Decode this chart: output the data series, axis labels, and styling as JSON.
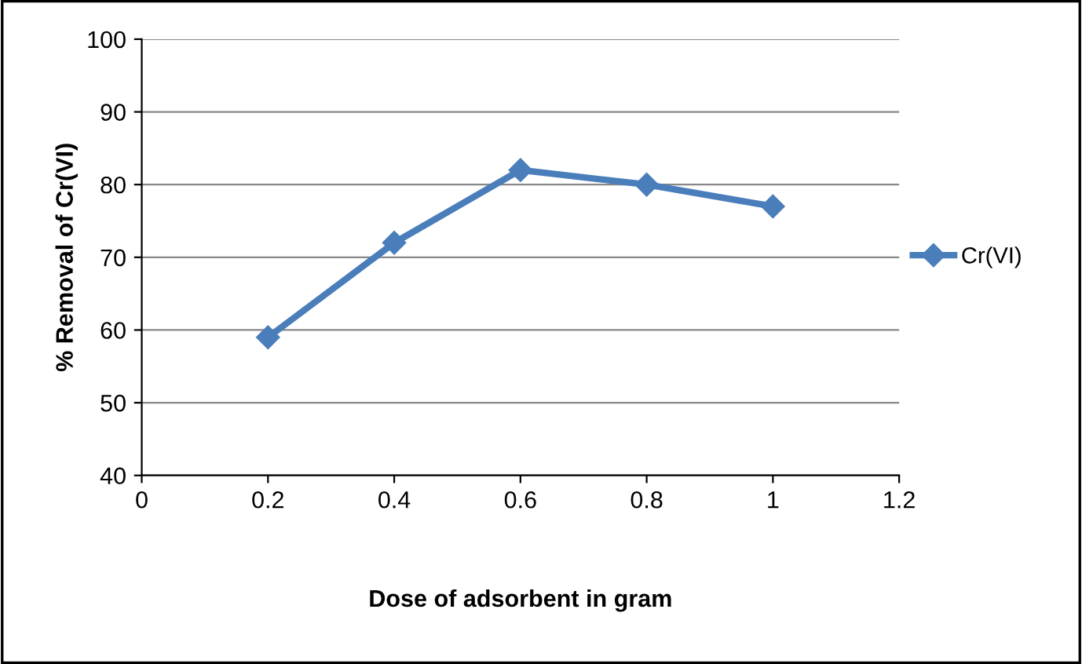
{
  "chart_data": {
    "type": "line",
    "xlabel": "Dose of adsorbent in gram",
    "ylabel": "% Removal of Cr(VI)",
    "x": [
      0.2,
      0.4,
      0.6,
      0.8,
      1
    ],
    "series": [
      {
        "name": "Cr(VI)",
        "color": "#4a7ebb",
        "values": [
          59,
          72,
          82,
          80,
          77
        ]
      }
    ],
    "xlim": [
      0,
      1.2
    ],
    "xticks": [
      0,
      0.2,
      0.4,
      0.6,
      0.8,
      1,
      1.2
    ],
    "ylim": [
      40,
      100
    ],
    "yticks": [
      40,
      50,
      60,
      70,
      80,
      90,
      100
    ],
    "grid": "y",
    "legend": "right",
    "marker": "diamond",
    "line_style": "solid"
  }
}
